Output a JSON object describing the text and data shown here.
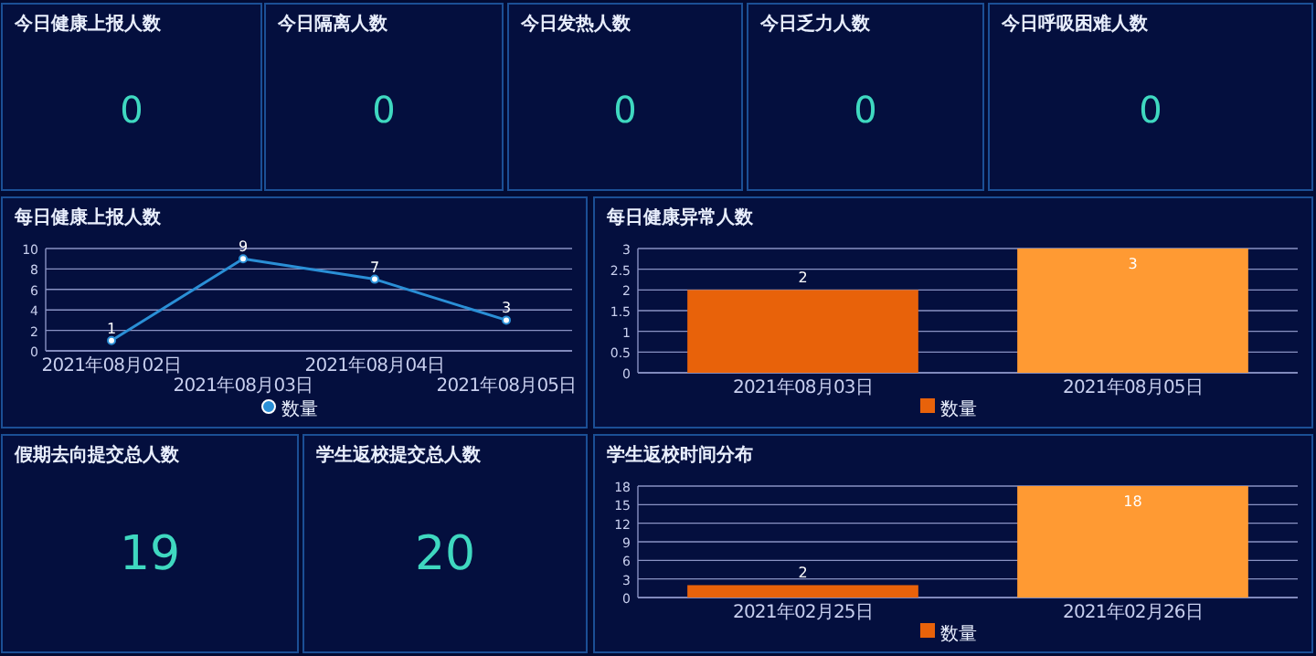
{
  "chart_data": [
    {
      "type": "other",
      "title": "今日健康上报人数",
      "annotations": [
        "0"
      ]
    },
    {
      "type": "other",
      "title": "今日隔离人数",
      "annotations": [
        "0"
      ]
    },
    {
      "type": "other",
      "title": "今日发热人数",
      "annotations": [
        "0"
      ]
    },
    {
      "type": "other",
      "title": "今日乏力人数",
      "annotations": [
        "0"
      ]
    },
    {
      "type": "other",
      "title": "今日呼吸困难人数",
      "annotations": [
        "0"
      ]
    },
    {
      "type": "line",
      "title": "每日健康上报人数",
      "categories": [
        "2021年08月02日",
        "2021年08月03日",
        "2021年08月04日",
        "2021年08月05日"
      ],
      "series": [
        {
          "name": "数量",
          "color": "#2a8fd6",
          "values": [
            1,
            9,
            7,
            3
          ]
        }
      ],
      "ylim": [
        0,
        10
      ],
      "yticks": [
        0,
        2,
        4,
        6,
        8,
        10
      ],
      "grid": "y",
      "legend": "bottom",
      "marker": "circle",
      "data_labels": true
    },
    {
      "type": "bar",
      "title": "每日健康异常人数",
      "categories": [
        "2021年08月03日",
        "2021年08月05日"
      ],
      "series": [
        {
          "name": "数量",
          "color": "#e8620a",
          "colors": [
            "#e8620a",
            "#ff9a33"
          ],
          "values": [
            2,
            3
          ]
        }
      ],
      "ylim": [
        0,
        3
      ],
      "yticks": [
        0,
        0.5,
        1,
        1.5,
        2,
        2.5,
        3
      ],
      "grid": "y",
      "legend": "bottom",
      "data_labels": true
    },
    {
      "type": "other",
      "title": "假期去向提交总人数",
      "annotations": [
        "19"
      ]
    },
    {
      "type": "other",
      "title": "学生返校提交总人数",
      "annotations": [
        "20"
      ]
    },
    {
      "type": "bar",
      "title": "学生返校时间分布",
      "categories": [
        "2021年02月25日",
        "2021年02月26日"
      ],
      "series": [
        {
          "name": "数量",
          "color": "#e8620a",
          "colors": [
            "#e8620a",
            "#ff9a33"
          ],
          "values": [
            2,
            18
          ]
        }
      ],
      "ylim": [
        0,
        18
      ],
      "yticks": [
        0,
        3,
        6,
        9,
        12,
        15,
        18
      ],
      "grid": "y",
      "legend": "bottom",
      "data_labels": true
    }
  ]
}
